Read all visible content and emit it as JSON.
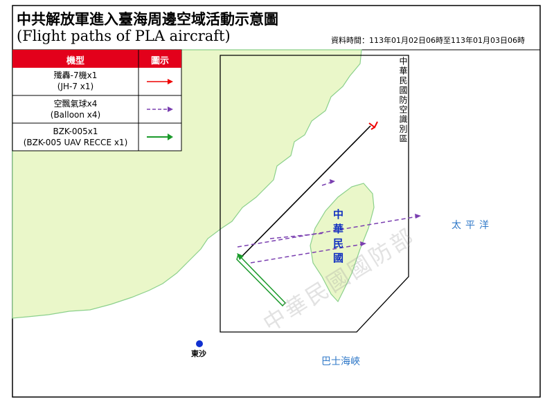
{
  "header": {
    "title": "中共解放軍進入臺海周邊空域活動示意圖",
    "subtitle": "(Flight paths of PLA aircraft)",
    "data_time": "資料時間：113年01月02日06時至113年01月03日06時"
  },
  "legend": {
    "columns": [
      "機型",
      "圖示"
    ],
    "rows": [
      {
        "label_zh": "殲轟-7機x1",
        "label_en": "(JH-7 x1)"
      },
      {
        "label_zh": "空飄氣球x4",
        "label_en": "(Balloon x4)"
      },
      {
        "label_zh": "BZK-005x1",
        "label_en": "(BZK-005 UAV RECCE x1)"
      }
    ]
  },
  "map_labels": {
    "adiz": "中華民國防空識別區",
    "taiwan": "中華民國",
    "pacific": "太平洋",
    "bashi": "巴士海峽",
    "dongsha": "東沙",
    "watermark": "中華民國國防部"
  }
}
